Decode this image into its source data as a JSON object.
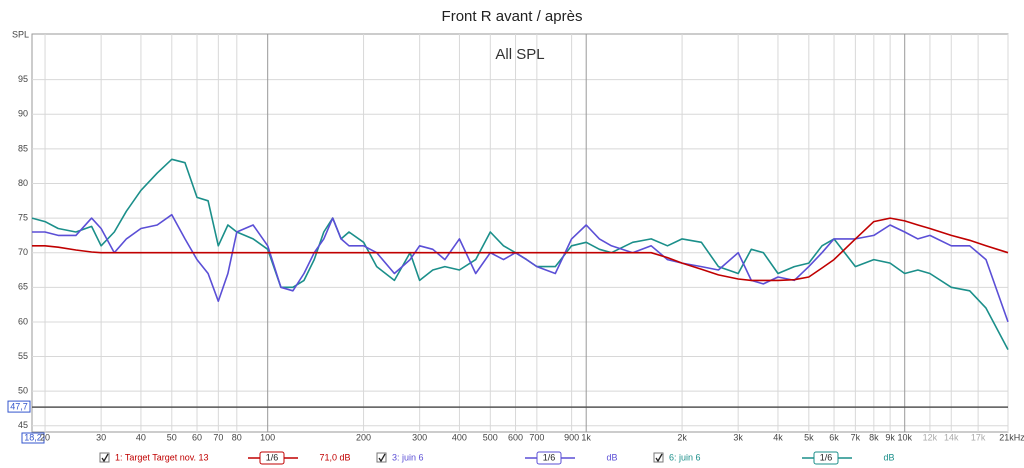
{
  "chart_data": {
    "type": "line",
    "title": "Front R avant / après",
    "subtitle": "All SPL",
    "y_label": "SPL",
    "xscale": "log",
    "grid": true,
    "xlim": [
      18.2,
      21100
    ],
    "ylim": [
      44.1,
      101.6
    ],
    "yticks": [
      45,
      50,
      55,
      60,
      65,
      70,
      75,
      80,
      85,
      90,
      95
    ],
    "xticks": [
      {
        "value": 18.2,
        "label": "18,2"
      },
      20,
      30,
      40,
      50,
      60,
      70,
      80,
      100,
      200,
      300,
      400,
      500,
      600,
      700,
      {
        "value": 900,
        "label": "900"
      },
      {
        "value": 1000,
        "label": "1k"
      },
      {
        "value": 2000,
        "label": "2k"
      },
      {
        "value": 3000,
        "label": "3k"
      },
      {
        "value": 4000,
        "label": "4k"
      },
      {
        "value": 5000,
        "label": "5k"
      },
      {
        "value": 6000,
        "label": "6k"
      },
      {
        "value": 7000,
        "label": "7k"
      },
      {
        "value": 8000,
        "label": "8k"
      },
      {
        "value": 9000,
        "label": "9k"
      },
      {
        "value": 10000,
        "label": "10k"
      },
      {
        "value": 12000,
        "label": "12k"
      },
      {
        "value": 14000,
        "label": "14k"
      },
      {
        "value": 17000,
        "label": "17k"
      },
      {
        "value": 21100,
        "label": "21kHz"
      }
    ],
    "hline": {
      "value": 47.7,
      "label": "47,7"
    },
    "x": [
      18.2,
      20,
      22,
      25,
      28,
      30,
      33,
      36,
      40,
      45,
      50,
      55,
      60,
      65,
      70,
      75,
      80,
      90,
      100,
      110,
      120,
      130,
      140,
      150,
      160,
      170,
      180,
      200,
      220,
      250,
      280,
      300,
      330,
      360,
      400,
      450,
      500,
      550,
      600,
      650,
      700,
      800,
      900,
      1000,
      1100,
      1200,
      1400,
      1600,
      1800,
      2000,
      2300,
      2600,
      3000,
      3300,
      3600,
      4000,
      4500,
      5000,
      5500,
      6000,
      7000,
      8000,
      9000,
      10000,
      11000,
      12000,
      14000,
      16000,
      18000,
      21100
    ],
    "series": [
      {
        "name": "1: Target Target nov. 13",
        "color": "#c00000",
        "smoothing": "1/6",
        "level": "71,0 dB",
        "values": [
          71,
          71,
          70.8,
          70.4,
          70.1,
          70,
          70,
          70,
          70,
          70,
          70,
          70,
          70,
          70,
          70,
          70,
          70,
          70,
          70,
          70,
          70,
          70,
          70,
          70,
          70,
          70,
          70,
          70,
          70,
          70,
          70,
          70,
          70,
          70,
          70,
          70,
          70,
          70,
          70,
          70,
          70,
          70,
          70,
          70,
          70,
          70,
          70,
          70,
          69.3,
          68.5,
          67.6,
          66.8,
          66.2,
          66,
          66,
          66,
          66.1,
          66.5,
          67.8,
          69,
          72,
          74.5,
          75,
          74.6,
          74,
          73.5,
          72.5,
          71.8,
          71,
          70
        ]
      },
      {
        "name": "3: juin 6",
        "color": "#5b4fd6",
        "smoothing": "1/6",
        "level": "dB",
        "values": [
          73,
          73,
          72.5,
          72.5,
          75,
          73.5,
          70,
          72,
          73.5,
          74,
          75.5,
          72,
          69,
          67,
          63,
          67,
          73,
          74,
          71,
          65,
          64.5,
          67,
          70,
          72,
          75,
          72,
          71,
          71,
          70,
          67,
          69,
          71,
          70.5,
          69,
          72,
          67,
          70,
          69,
          70,
          69,
          68,
          67,
          72,
          74,
          72,
          71,
          70,
          71,
          69,
          68.5,
          68,
          67.5,
          70,
          66,
          65.5,
          66.5,
          66,
          68,
          70,
          72,
          72,
          72.5,
          74,
          73,
          72,
          72.5,
          71,
          71,
          69,
          60
        ]
      },
      {
        "name": "6: juin 6",
        "color": "#1b8f8a",
        "smoothing": "1/6",
        "level": "dB",
        "values": [
          75,
          74.5,
          73.5,
          73,
          73.8,
          71,
          73,
          76,
          79,
          81.5,
          83.5,
          83,
          78,
          77.5,
          71,
          74,
          73,
          72,
          70.5,
          65,
          65,
          66,
          69,
          73,
          75,
          72,
          73,
          71.5,
          68,
          66,
          70,
          66,
          67.5,
          68,
          67.5,
          69,
          73,
          71,
          70,
          69,
          68,
          68,
          71,
          71.5,
          70.5,
          70,
          71.5,
          72,
          71,
          72,
          71.5,
          68,
          67,
          70.5,
          70,
          67,
          68,
          68.5,
          71,
          72,
          68,
          69,
          68.5,
          67,
          67.5,
          67,
          65,
          64.5,
          62,
          56
        ]
      }
    ]
  }
}
